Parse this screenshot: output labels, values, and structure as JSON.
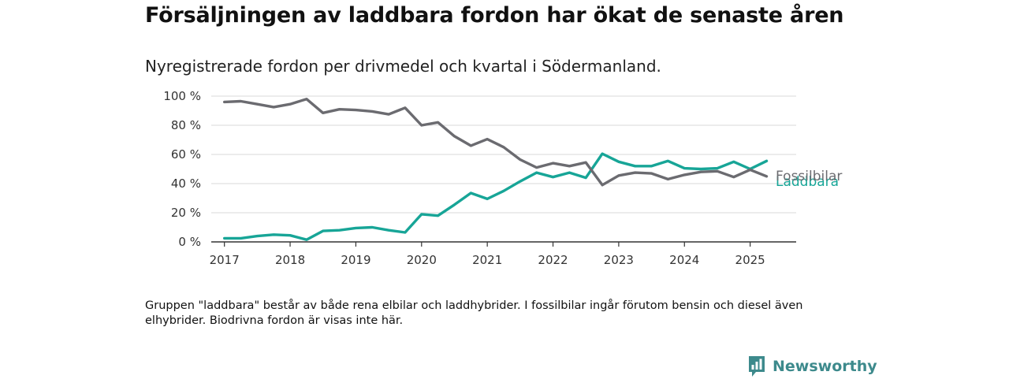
{
  "title": "Försäljningen av laddbara fordon har ökat de senaste åren",
  "subtitle": "Nyregistrerade fordon per drivmedel och kvartal i Södermanland.",
  "note": "Gruppen \"laddbara\" består av både rena elbilar och laddhybrider. I fossilbilar ingår förutom bensin och diesel även elhybrider. Biodrivna fordon är visas inte här.",
  "brand": {
    "name": "Newsworthy",
    "icon": "newsworthy-logo-icon",
    "color": "#3d8a8c"
  },
  "chart_data": {
    "type": "line",
    "x_tick_labels": [
      "2017",
      "2018",
      "2019",
      "2020",
      "2021",
      "2022",
      "2023",
      "2024",
      "2025"
    ],
    "y_tick_labels": [
      "0 %",
      "20 %",
      "40 %",
      "60 %",
      "80 %",
      "100 %"
    ],
    "y_ticks": [
      0,
      20,
      40,
      60,
      80,
      100
    ],
    "ylim": [
      0,
      100
    ],
    "xlim": [
      2016.8,
      2025.7
    ],
    "grid": true,
    "x": [
      2017.0,
      2017.25,
      2017.5,
      2017.75,
      2018.0,
      2018.25,
      2018.5,
      2018.75,
      2019.0,
      2019.25,
      2019.5,
      2019.75,
      2020.0,
      2020.25,
      2020.5,
      2020.75,
      2021.0,
      2021.25,
      2021.5,
      2021.75,
      2022.0,
      2022.25,
      2022.5,
      2022.75,
      2023.0,
      2023.25,
      2023.5,
      2023.75,
      2024.0,
      2024.25,
      2024.5,
      2024.75,
      2025.0,
      2025.25
    ],
    "series": [
      {
        "name": "Fossilbilar",
        "color": "#6b6b70",
        "values": [
          96,
          96.5,
          94.5,
          92.5,
          94.5,
          98,
          88.5,
          91,
          90.5,
          89.5,
          87.5,
          92,
          80,
          82,
          72.5,
          66,
          70.5,
          65,
          56.5,
          51,
          54,
          52,
          54.5,
          39,
          45.5,
          47.5,
          47,
          43,
          46,
          48,
          48.5,
          44.5,
          49.5,
          45
        ]
      },
      {
        "name": "Laddbara",
        "color": "#17a597",
        "values": [
          2.5,
          2.5,
          4,
          5,
          4.5,
          1.5,
          7.5,
          8,
          9.5,
          10,
          8,
          6.5,
          19,
          18,
          25.5,
          33.5,
          29.5,
          35,
          41.5,
          47.5,
          44.5,
          47.5,
          44,
          60.5,
          55,
          52,
          52,
          55.5,
          50.5,
          50,
          50.5,
          55,
          50,
          55.5
        ]
      }
    ]
  }
}
